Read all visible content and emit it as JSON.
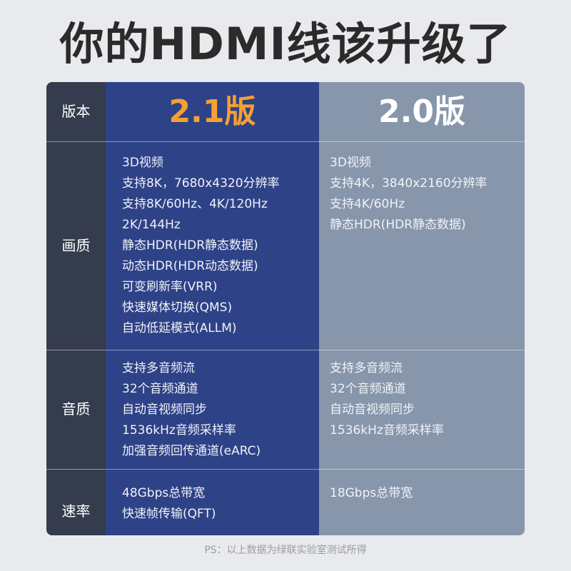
{
  "title": "你的HDMI线该升级了",
  "colors": {
    "background": "#e9eaed",
    "label_column": "#343c4e",
    "v21_column": "#2e4287",
    "v20_column": "#8796ab",
    "v21_accent": "#f5a033"
  },
  "header": {
    "label": "版本",
    "v21": "2.1版",
    "v20": "2.0版"
  },
  "rows": [
    {
      "label": "画质",
      "v21": [
        "3D视频",
        "支持8K，7680x4320分辨率",
        "支持8K/60Hz、4K/120Hz",
        "2K/144Hz",
        "静态HDR(HDR静态数据)",
        "动态HDR(HDR动态数据)",
        "可变刷新率(VRR)",
        "快速媒体切换(QMS)",
        "自动低延模式(ALLM)"
      ],
      "v20": [
        "3D视频",
        "支持4K，3840x2160分辨率",
        "支持4K/60Hz",
        "静态HDR(HDR静态数据)"
      ]
    },
    {
      "label": "音质",
      "v21": [
        "支持多音频流",
        "32个音频通道",
        "自动音视频同步",
        "1536kHz音频采样率",
        "加强音频回传通道(eARC)"
      ],
      "v20": [
        "支持多音频流",
        "32个音频通道",
        "自动音视频同步",
        "1536kHz音频采样率"
      ]
    },
    {
      "label": "速率",
      "v21": [
        "48Gbps总带宽",
        "快速帧传输(QFT)"
      ],
      "v20": [
        "18Gbps总带宽"
      ]
    }
  ],
  "footer": "PS：以上数据为绿联实验室测试所得"
}
